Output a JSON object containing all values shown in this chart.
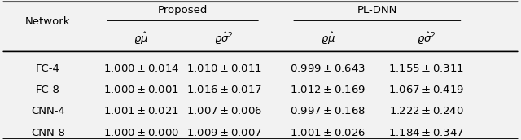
{
  "title_proposed": "Proposed",
  "title_pldnn": "PL-DNN",
  "col_network": "Network",
  "col_mu": "$\\varrho\\hat{\\mu}$",
  "col_sigma2": "$\\varrho\\hat{\\sigma}^2$",
  "networks": [
    "FC-4",
    "FC-8",
    "CNN-4",
    "CNN-8"
  ],
  "proposed_mu": [
    "$1.000 \\pm 0.014$",
    "$1.000 \\pm 0.001$",
    "$1.001 \\pm 0.021$",
    "$1.000 \\pm 0.000$"
  ],
  "proposed_sigma2": [
    "$1.010 \\pm 0.011$",
    "$1.016 \\pm 0.017$",
    "$1.007 \\pm 0.006$",
    "$1.009 \\pm 0.007$"
  ],
  "pldnn_mu": [
    "$0.999 \\pm 0.643$",
    "$1.012 \\pm 0.169$",
    "$0.997 \\pm 0.168$",
    "$1.001 \\pm 0.026$"
  ],
  "pldnn_sigma2": [
    "$1.155 \\pm 0.311$",
    "$1.067 \\pm 0.419$",
    "$1.222 \\pm 0.240$",
    "$1.184 \\pm 0.347$"
  ],
  "bg_color": "#f2f2f2",
  "text_color": "#000000",
  "fontsize": 9.5
}
